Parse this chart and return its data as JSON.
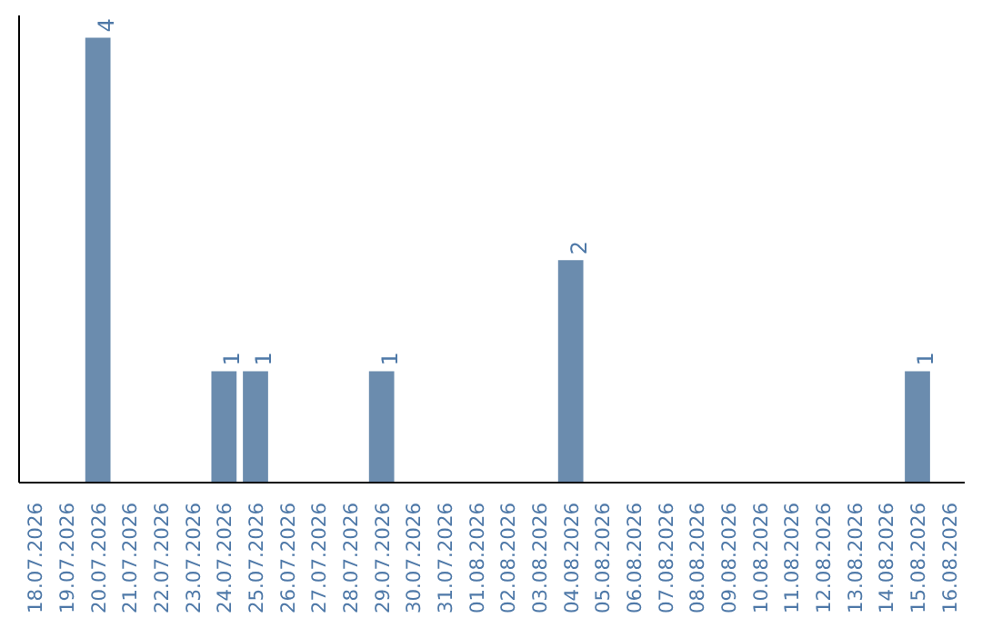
{
  "chart_data": {
    "type": "bar",
    "categories": [
      "18.07.2026",
      "19.07.2026",
      "20.07.2026",
      "21.07.2026",
      "22.07.2026",
      "23.07.2026",
      "24.07.2026",
      "25.07.2026",
      "26.07.2026",
      "27.07.2026",
      "28.07.2026",
      "29.07.2026",
      "30.07.2026",
      "31.07.2026",
      "01.08.2026",
      "02.08.2026",
      "03.08.2026",
      "04.08.2026",
      "05.08.2026",
      "06.08.2026",
      "07.08.2026",
      "08.08.2026",
      "09.08.2026",
      "10.08.2026",
      "11.08.2026",
      "12.08.2026",
      "13.08.2026",
      "14.08.2026",
      "15.08.2026",
      "16.08.2026"
    ],
    "values": [
      null,
      null,
      4,
      null,
      null,
      null,
      1,
      1,
      null,
      null,
      null,
      1,
      null,
      null,
      null,
      null,
      null,
      2,
      null,
      null,
      null,
      null,
      null,
      null,
      null,
      null,
      null,
      null,
      1,
      null
    ],
    "color": "#6b8cae",
    "ylim": [
      0,
      4.2
    ],
    "data_labels": true,
    "tick_labels": "x",
    "grid": false
  }
}
